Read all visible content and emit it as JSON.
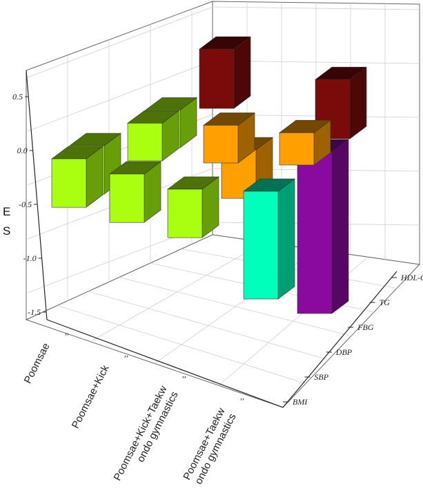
{
  "chart_data": {
    "type": "bar3d",
    "ylabel": "E S",
    "yticks": [
      "0.5",
      "0.0",
      "-0.5",
      "-1.0",
      "-1.5"
    ],
    "ylim": [
      -1.6,
      0.7
    ],
    "categories": [
      "Poomsae",
      "Poomsae+Kick",
      "Poomsae+Kick+Taekwondo gymnastics",
      "Poomsae+Taekwondo gymnastics"
    ],
    "category_label_lines": [
      [
        "Poomsae"
      ],
      [
        "Poomsae+Kick"
      ],
      [
        "Poomsae+Kick+Taekw",
        "ondo gymnastics"
      ],
      [
        "Poomsae+Taekw",
        "ondo gymnastics"
      ]
    ],
    "series_axis": [
      "BMI",
      "SBP",
      "DBP",
      "FBG",
      "TG",
      "HDL-C"
    ],
    "colors": {
      "BMI": "#aaff11",
      "SBP": "#98ee10",
      "DBP": "#aef21a",
      "FBG": "#ffa000",
      "TG": "#8a0aa0",
      "HDL-C": "#7a0b0b",
      "Teal": "#00ffbb"
    },
    "bars": [
      {
        "category": "Poomsae",
        "series": "BMI",
        "value": -0.45,
        "color": "#aaff11"
      },
      {
        "category": "Poomsae",
        "series": "SBP",
        "value": -0.45,
        "color": "#aaff11"
      },
      {
        "category": "Poomsae+Kick",
        "series": "BMI",
        "value": -0.45,
        "color": "#aaff11"
      },
      {
        "category": "Poomsae+Kick",
        "series": "SBP",
        "value": 0.35,
        "color": "#aaff11"
      },
      {
        "category": "Poomsae+Kick",
        "series": "DBP",
        "value": 0.35,
        "color": "#aaff11"
      },
      {
        "category": "Poomsae+Kick",
        "series": "HDL-C",
        "value": 0.55,
        "color": "#7a0b0b"
      },
      {
        "category": "Poomsae+Kick+Taekwondo gymnastics",
        "series": "BMI",
        "value": -0.45,
        "color": "#aaff11"
      },
      {
        "category": "Poomsae+Kick+Taekwondo gymnastics",
        "series": "DBP",
        "value": 0.35,
        "color": "#ffa000"
      },
      {
        "category": "Poomsae+Kick+Taekwondo gymnastics",
        "series": "FBG",
        "value": -0.45,
        "color": "#ffa000"
      },
      {
        "category": "Poomsae+Taekwondo gymnastics",
        "series": "TG",
        "value": -1.5,
        "color": "#8a0aa0"
      },
      {
        "category": "Poomsae+Taekwondo gymnastics",
        "series": "FBG",
        "value": 0.3,
        "color": "#ffa000"
      },
      {
        "category": "Poomsae+Taekwondo gymnastics",
        "series": "SBP",
        "value": -1.0,
        "color": "#00ffbb"
      },
      {
        "category": "Poomsae+Taekwondo gymnastics",
        "series": "HDL-C",
        "value": 0.55,
        "color": "#7a0b0b"
      }
    ],
    "grid": true
  }
}
